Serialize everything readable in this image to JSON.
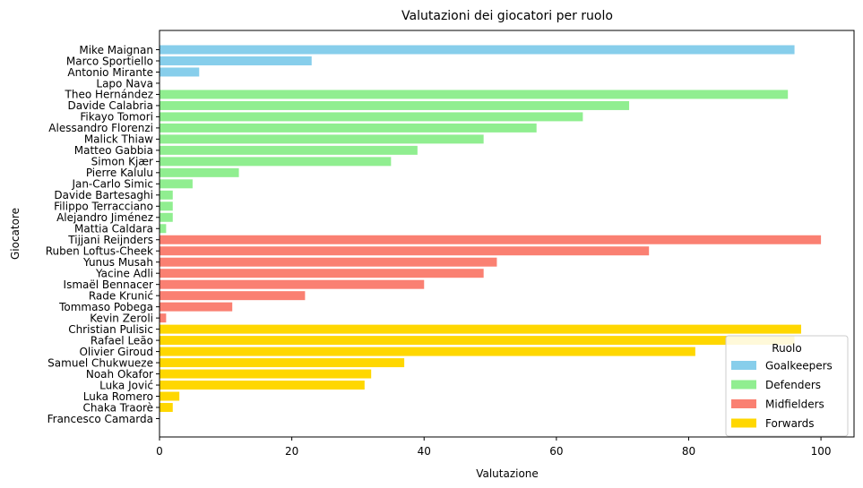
{
  "chart_data": {
    "type": "bar",
    "orientation": "horizontal",
    "title": "Valutazioni dei giocatori per ruolo",
    "xlabel": "Valutazione",
    "ylabel": "Giocatore",
    "xlim": [
      0,
      105
    ],
    "xticks": [
      0,
      20,
      40,
      60,
      80,
      100
    ],
    "grid": false,
    "legend": {
      "title": "Ruolo",
      "placement": "lower-right",
      "entries": [
        "Goalkeepers",
        "Defenders",
        "Midfielders",
        "Forwards"
      ]
    },
    "colors": {
      "Goalkeepers": "#87ceeb",
      "Defenders": "#90ee90",
      "Midfielders": "#fa8072",
      "Forwards": "#ffd700"
    },
    "categories": [
      "Mike Maignan",
      "Marco Sportiello",
      "Antonio Mirante",
      "Lapo Nava",
      "Theo Hernández",
      "Davide Calabria",
      "Fikayo Tomori",
      "Alessandro Florenzi",
      "Malick Thiaw",
      "Matteo Gabbia",
      "Simon Kjær",
      "Pierre Kalulu",
      "Jan-Carlo Simic",
      "Davide Bartesaghi",
      "Filippo Terracciano",
      "Alejandro Jiménez",
      "Mattia Caldara",
      "Tijjani Reijnders",
      "Ruben Loftus-Cheek",
      "Yunus Musah",
      "Yacine Adli",
      "Ismaël Bennacer",
      "Rade Krunić",
      "Tommaso Pobega",
      "Kevin Zeroli",
      "Christian Pulisic",
      "Rafael Leão",
      "Olivier Giroud",
      "Samuel Chukwueze",
      "Noah Okafor",
      "Luka Jović",
      "Luka Romero",
      "Chaka Traorè",
      "Francesco Camarda"
    ],
    "roles": [
      "Goalkeepers",
      "Goalkeepers",
      "Goalkeepers",
      "Goalkeepers",
      "Defenders",
      "Defenders",
      "Defenders",
      "Defenders",
      "Defenders",
      "Defenders",
      "Defenders",
      "Defenders",
      "Defenders",
      "Defenders",
      "Defenders",
      "Defenders",
      "Defenders",
      "Midfielders",
      "Midfielders",
      "Midfielders",
      "Midfielders",
      "Midfielders",
      "Midfielders",
      "Midfielders",
      "Midfielders",
      "Forwards",
      "Forwards",
      "Forwards",
      "Forwards",
      "Forwards",
      "Forwards",
      "Forwards",
      "Forwards",
      "Forwards"
    ],
    "values": [
      96,
      23,
      6,
      0,
      95,
      71,
      64,
      57,
      49,
      39,
      35,
      12,
      5,
      2,
      2,
      2,
      1,
      100,
      74,
      51,
      49,
      40,
      22,
      11,
      1,
      97,
      96,
      81,
      37,
      32,
      31,
      3,
      2,
      0
    ]
  }
}
